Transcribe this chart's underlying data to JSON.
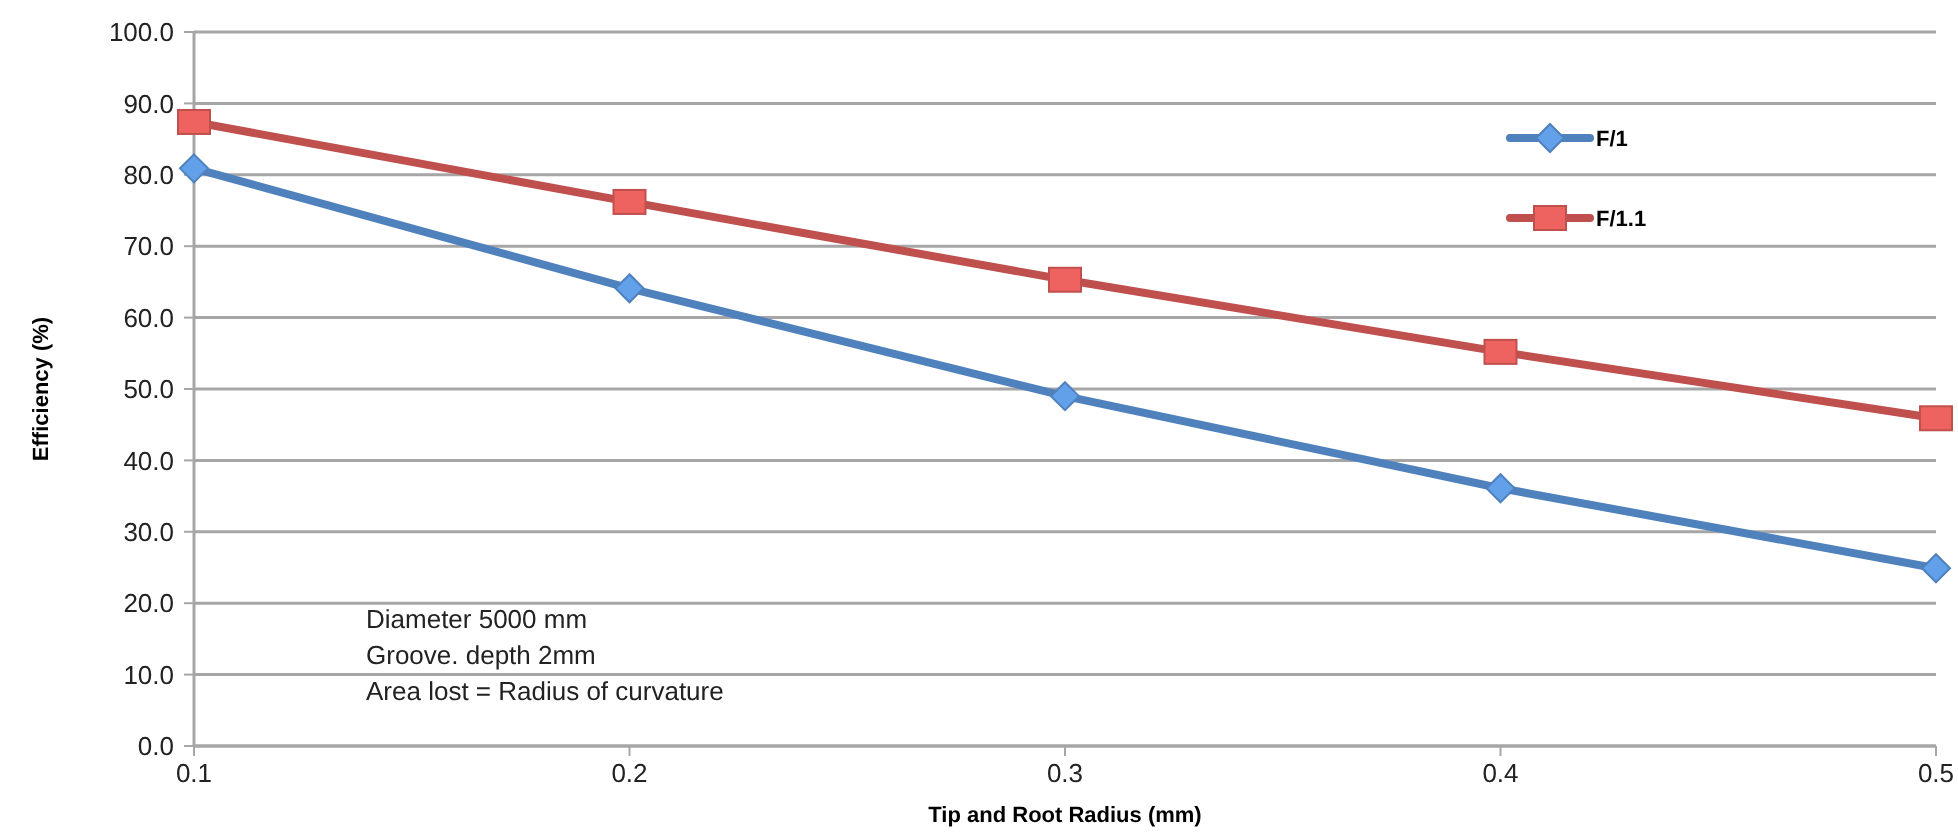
{
  "chart_data": {
    "type": "line",
    "xlabel": "Tip and Root Radius (mm)",
    "ylabel": "Efficiency (%)",
    "categories": [
      "0.1",
      "0.2",
      "0.3",
      "0.4",
      "0.5"
    ],
    "series": [
      {
        "name": "F/1",
        "color": "#4f81bd",
        "marker": "diamond",
        "values": [
          80.9,
          64.1,
          49.0,
          36.1,
          24.9
        ]
      },
      {
        "name": "F/1.1",
        "color": "#c0504d",
        "marker": "square",
        "values": [
          87.4,
          76.2,
          65.3,
          55.2,
          45.9
        ]
      }
    ],
    "ylim": [
      0,
      100
    ],
    "yticks": [
      {
        "value": 0,
        "label": "0.0"
      },
      {
        "value": 10,
        "label": "10.0"
      },
      {
        "value": 20,
        "label": "20.0"
      },
      {
        "value": 30,
        "label": "30.0"
      },
      {
        "value": 40,
        "label": "40.0"
      },
      {
        "value": 50,
        "label": "50.0"
      },
      {
        "value": 60,
        "label": "60.0"
      },
      {
        "value": 70,
        "label": "70.0"
      },
      {
        "value": 80,
        "label": "80.0"
      },
      {
        "value": 90,
        "label": "90.0"
      },
      {
        "value": 100,
        "label": "100.0"
      }
    ],
    "grid": "y",
    "legend": "top right",
    "annotations": [
      "Diameter 5000 mm",
      "Groove. depth 2mm",
      "Area lost = Radius of curvature"
    ]
  }
}
